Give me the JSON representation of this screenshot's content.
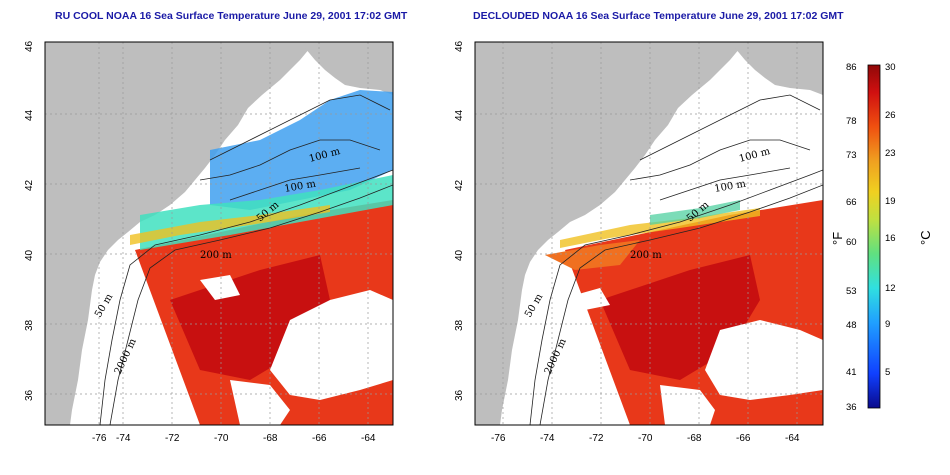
{
  "panels": [
    {
      "title": "RU COOL NOAA 16 Sea Surface Temperature June 29, 2001 17:02 GMT",
      "contours": [
        "100 m",
        "100 m",
        "50 m",
        "200 m",
        "50 m",
        "2000 m"
      ]
    },
    {
      "title": "DECLOUDED NOAA 16 Sea Surface Temperature June 29, 2001 17:02 GMT",
      "contours": [
        "100 m",
        "100 m",
        "50 m",
        "200 m",
        "50 m",
        "2000 m"
      ]
    }
  ],
  "axes": {
    "lon_ticks": [
      "-76",
      "-74",
      "-72",
      "-70",
      "-68",
      "-66",
      "-64"
    ],
    "lat_ticks": [
      "46",
      "44",
      "42",
      "40",
      "38",
      "36"
    ]
  },
  "colorbar": {
    "fahrenheit_unit": "°F",
    "celsius_unit": "°C",
    "fahrenheit_ticks": [
      "86",
      "78",
      "73",
      "66",
      "60",
      "53",
      "48",
      "41",
      "36"
    ],
    "celsius_ticks": [
      "30",
      "26",
      "23",
      "19",
      "16",
      "12",
      "9",
      "5"
    ],
    "colors": [
      "#0a0a8c",
      "#1040ff",
      "#20a0ff",
      "#30e0e0",
      "#60e080",
      "#c0e040",
      "#f0d020",
      "#f0a020",
      "#f05010",
      "#d01010",
      "#900808"
    ]
  },
  "colors": {
    "land": "#bebebe",
    "ocean_bg": "#ffffff",
    "sst_warm": "#e8381a",
    "sst_hot": "#c81010",
    "cloud": "#ffffff"
  }
}
